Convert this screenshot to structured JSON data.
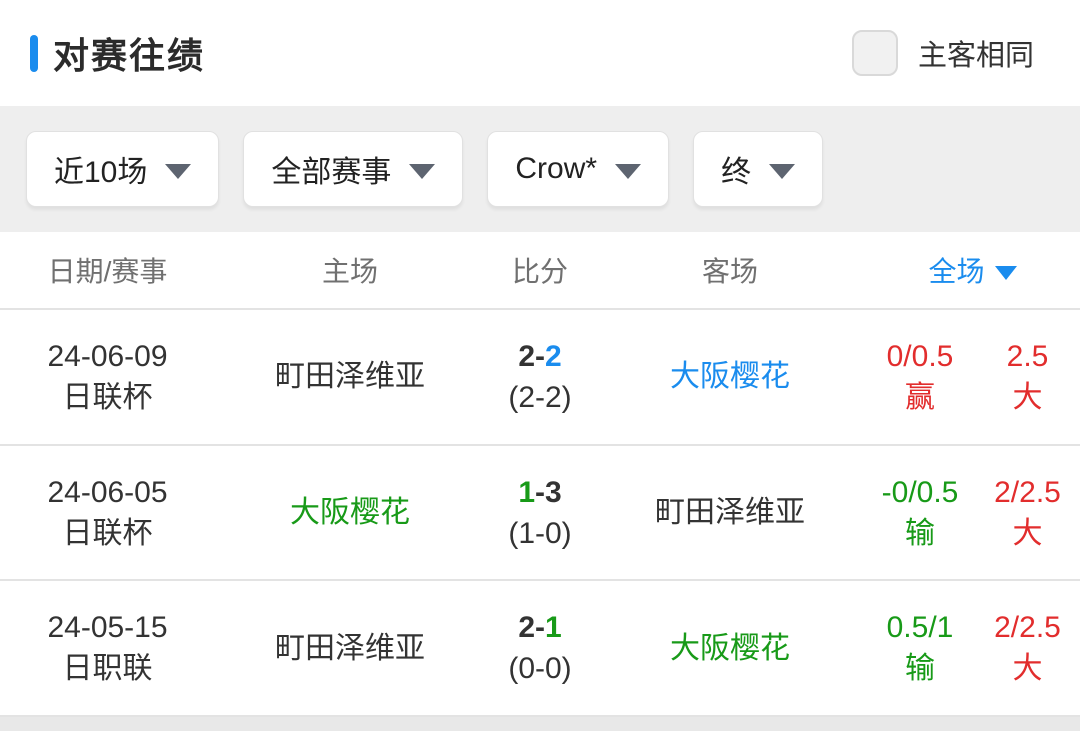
{
  "colors": {
    "accent_blue": "#1a8cee",
    "win_red": "#e22d2d",
    "loss_green": "#189a18",
    "dark_text": "#333333"
  },
  "header": {
    "title": "对赛往绩",
    "same_venue_label": "主客相同"
  },
  "filterbar": {
    "filters": [
      {
        "label": "近10场"
      },
      {
        "label": "全部赛事"
      },
      {
        "label": "Crow*"
      },
      {
        "label": "终"
      }
    ]
  },
  "table": {
    "columns": {
      "date": "日期/赛事",
      "home": "主场",
      "score": "比分",
      "away": "客场",
      "fulltime": "全场"
    },
    "rows": [
      {
        "date": "24-06-09",
        "competition": "日联杯",
        "home": "町田泽维亚",
        "home_color": "#333333",
        "away": "大阪樱花",
        "away_color": "#1a8cee",
        "score": {
          "home": "2",
          "sep": "-",
          "away": "2",
          "home_color": "#333333",
          "away_color": "#1a8cee",
          "half": "(2-2)"
        },
        "handicap": {
          "line": "0/0.5",
          "result": "赢",
          "color": "#e22d2d"
        },
        "goals": {
          "line": "2.5",
          "result": "大",
          "color": "#e22d2d"
        }
      },
      {
        "date": "24-06-05",
        "competition": "日联杯",
        "home": "大阪樱花",
        "home_color": "#189a18",
        "away": "町田泽维亚",
        "away_color": "#333333",
        "score": {
          "home": "1",
          "sep": "-",
          "away": "3",
          "home_color": "#189a18",
          "away_color": "#333333",
          "half": "(1-0)"
        },
        "handicap": {
          "line": "-0/0.5",
          "result": "输",
          "color": "#189a18"
        },
        "goals": {
          "line": "2/2.5",
          "result": "大",
          "color": "#e22d2d"
        }
      },
      {
        "date": "24-05-15",
        "competition": "日职联",
        "home": "町田泽维亚",
        "home_color": "#333333",
        "away": "大阪樱花",
        "away_color": "#189a18",
        "score": {
          "home": "2",
          "sep": "-",
          "away": "1",
          "home_color": "#333333",
          "away_color": "#189a18",
          "half": "(0-0)"
        },
        "handicap": {
          "line": "0.5/1",
          "result": "输",
          "color": "#189a18"
        },
        "goals": {
          "line": "2/2.5",
          "result": "大",
          "color": "#e22d2d"
        }
      }
    ]
  }
}
